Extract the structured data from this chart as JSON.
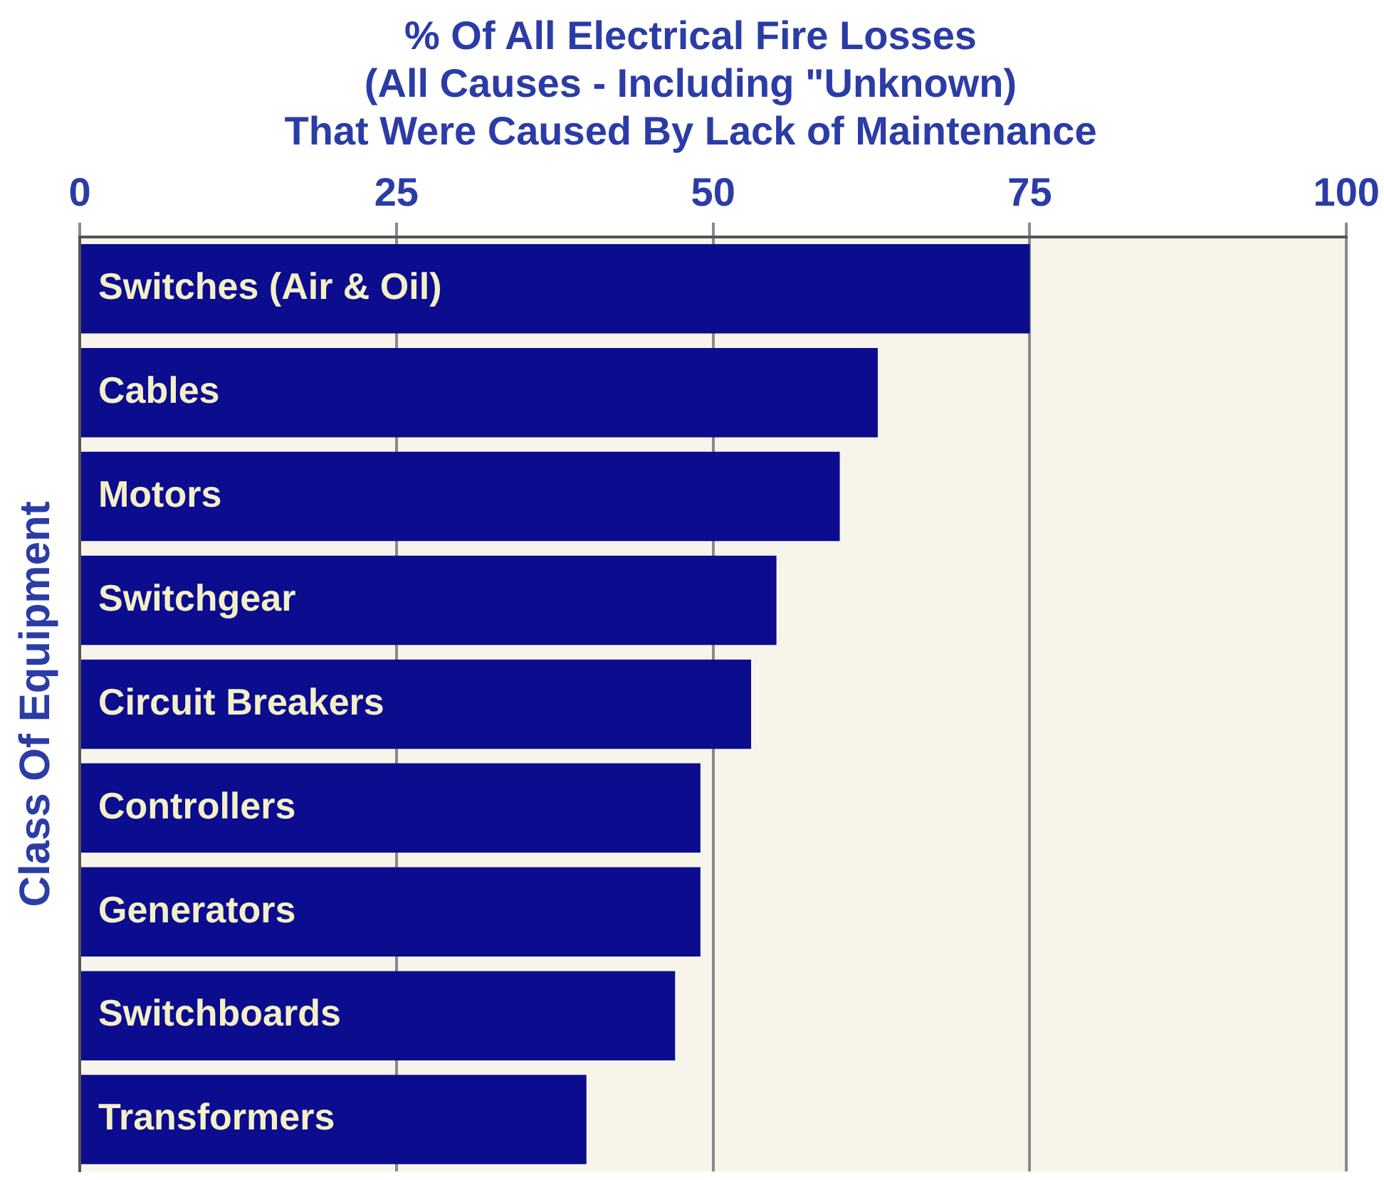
{
  "chart_data": {
    "type": "bar",
    "orientation": "horizontal",
    "title": "% Of All Electrical Fire Losses\n(All Causes - Including \"Unknown)\nThat Were Caused By Lack of Maintenance",
    "ylabel": "Class Of Equipment",
    "categories": [
      "Switches (Air & Oil)",
      "Cables",
      "Motors",
      "Switchgear",
      "Circuit Breakers",
      "Controllers",
      "Generators",
      "Switchboards",
      "Transformers"
    ],
    "values": [
      75,
      63,
      60,
      55,
      53,
      49,
      49,
      47,
      40
    ],
    "color": "#0c0c8e",
    "xlim": [
      0,
      100
    ],
    "xticks": [
      0,
      25,
      50,
      75,
      100
    ],
    "grid": "x",
    "legend": false
  }
}
